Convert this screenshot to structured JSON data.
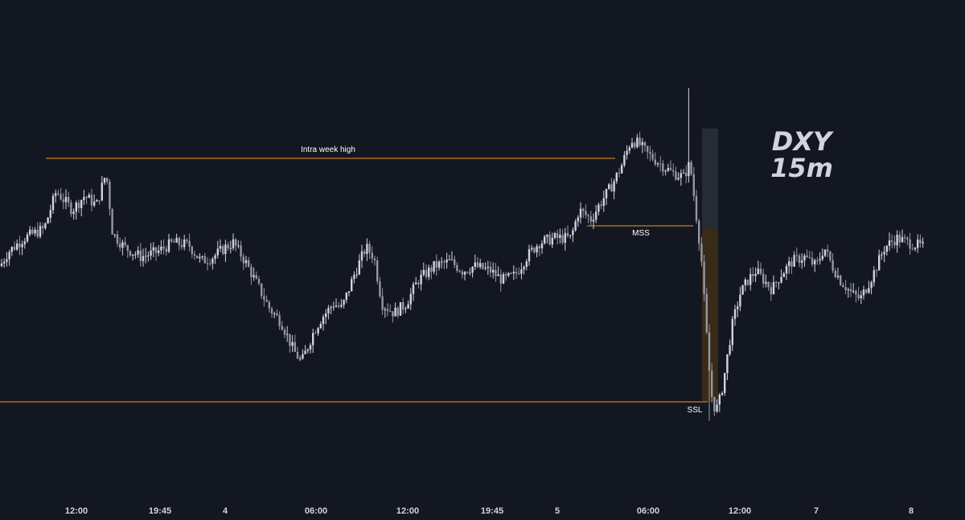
{
  "title_lines": [
    "DXY",
    "15m"
  ],
  "x_ticks": [
    "12:00",
    "19:45",
    "4",
    "06:00",
    "12:00",
    "19:45",
    "5",
    "06:00",
    "12:00",
    "7",
    "8"
  ],
  "annotations": {
    "intra_week_high": "Intra week high",
    "mss": "MSS",
    "ssl": "SSL"
  },
  "colors": {
    "background": "#131722",
    "level_line": "#f7931a",
    "candle": "#d1d4dc",
    "candle_bear": "#9598a1",
    "premium_zone": "#2a2e39",
    "discount_zone": "#3d2e17"
  },
  "chart_data": {
    "type": "candlestick",
    "symbol": "DXY",
    "timeframe": "15m",
    "levels": [
      {
        "name": "Intra week high",
        "value": 104.92
      },
      {
        "name": "MSS",
        "value": 104.64
      },
      {
        "name": "SSL",
        "value": 103.88
      }
    ],
    "path": [
      [
        0,
        104.46
      ],
      [
        10,
        104.52
      ],
      [
        30,
        104.58
      ],
      [
        55,
        104.62
      ],
      [
        70,
        104.78
      ],
      [
        90,
        104.7
      ],
      [
        105,
        104.76
      ],
      [
        120,
        104.72
      ],
      [
        132,
        104.86
      ],
      [
        140,
        104.6
      ],
      [
        155,
        104.54
      ],
      [
        175,
        104.5
      ],
      [
        195,
        104.52
      ],
      [
        215,
        104.56
      ],
      [
        235,
        104.55
      ],
      [
        250,
        104.48
      ],
      [
        265,
        104.5
      ],
      [
        280,
        104.54
      ],
      [
        290,
        104.56
      ],
      [
        305,
        104.48
      ],
      [
        320,
        104.38
      ],
      [
        335,
        104.28
      ],
      [
        350,
        104.22
      ],
      [
        365,
        104.1
      ],
      [
        375,
        104.05
      ],
      [
        390,
        104.18
      ],
      [
        400,
        104.24
      ],
      [
        415,
        104.3
      ],
      [
        425,
        104.28
      ],
      [
        440,
        104.42
      ],
      [
        455,
        104.54
      ],
      [
        465,
        104.5
      ],
      [
        475,
        104.3
      ],
      [
        490,
        104.26
      ],
      [
        505,
        104.3
      ],
      [
        520,
        104.4
      ],
      [
        540,
        104.46
      ],
      [
        560,
        104.48
      ],
      [
        575,
        104.44
      ],
      [
        590,
        104.46
      ],
      [
        610,
        104.44
      ],
      [
        625,
        104.4
      ],
      [
        640,
        104.42
      ],
      [
        655,
        104.5
      ],
      [
        670,
        104.56
      ],
      [
        690,
        104.58
      ],
      [
        710,
        104.58
      ],
      [
        720,
        104.7
      ],
      [
        735,
        104.66
      ],
      [
        745,
        104.72
      ],
      [
        760,
        104.8
      ],
      [
        772,
        104.88
      ],
      [
        785,
        105.0
      ],
      [
        795,
        104.98
      ],
      [
        805,
        104.94
      ],
      [
        820,
        104.9
      ],
      [
        835,
        104.86
      ],
      [
        850,
        104.84
      ],
      [
        858,
        104.9
      ],
      [
        865,
        104.7
      ],
      [
        872,
        104.5
      ],
      [
        878,
        104.2
      ],
      [
        884,
        103.92
      ],
      [
        890,
        103.84
      ],
      [
        896,
        103.9
      ],
      [
        902,
        104.02
      ],
      [
        910,
        104.2
      ],
      [
        920,
        104.34
      ],
      [
        930,
        104.4
      ],
      [
        940,
        104.44
      ],
      [
        950,
        104.4
      ],
      [
        960,
        104.36
      ],
      [
        970,
        104.42
      ],
      [
        985,
        104.48
      ],
      [
        1000,
        104.5
      ],
      [
        1015,
        104.46
      ],
      [
        1025,
        104.54
      ],
      [
        1035,
        104.46
      ],
      [
        1045,
        104.4
      ],
      [
        1060,
        104.34
      ],
      [
        1070,
        104.32
      ],
      [
        1085,
        104.42
      ],
      [
        1100,
        104.54
      ],
      [
        1115,
        104.58
      ],
      [
        1130,
        104.56
      ],
      [
        1150,
        104.54
      ]
    ],
    "extremes": [
      [
        855,
        105.22
      ],
      [
        882,
        103.8
      ]
    ]
  }
}
